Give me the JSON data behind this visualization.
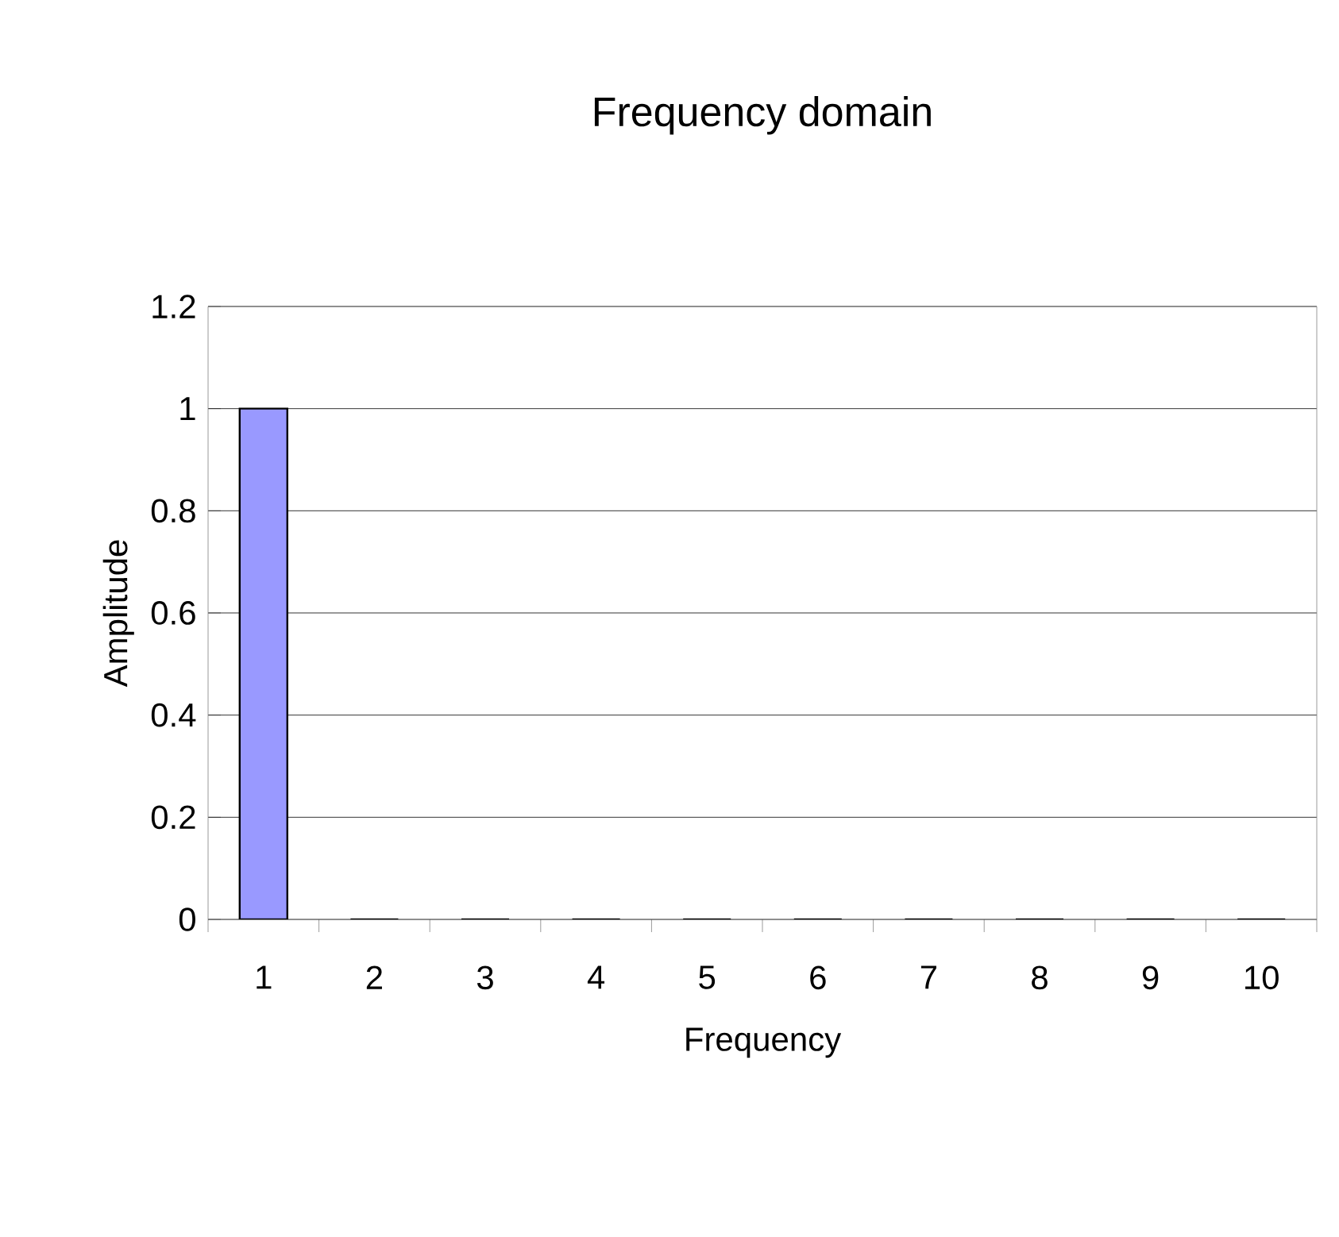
{
  "chart_data": {
    "type": "bar",
    "title": "Frequency domain",
    "xlabel": "Frequency",
    "ylabel": "Amplitude",
    "categories": [
      "1",
      "2",
      "3",
      "4",
      "5",
      "6",
      "7",
      "8",
      "9",
      "10"
    ],
    "values": [
      1,
      0,
      0,
      0,
      0,
      0,
      0,
      0,
      0,
      0
    ],
    "color": "#9999ff",
    "ylim": [
      0,
      1.2
    ],
    "yticks": [
      0,
      0.2,
      0.4,
      0.6,
      0.8,
      1,
      1.2
    ],
    "grid": "y"
  }
}
